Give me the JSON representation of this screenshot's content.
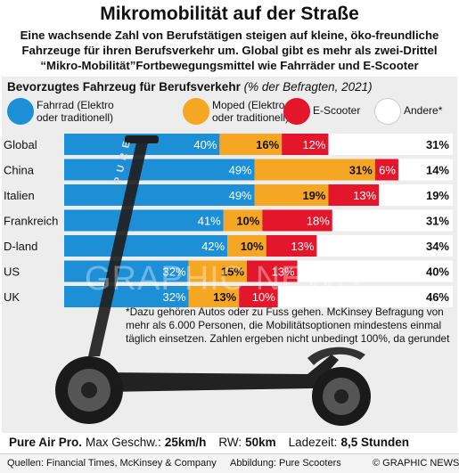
{
  "header": {
    "title": "Mikromobilität auf der Straße",
    "intro": "Eine wachsende Zahl von Berufstätigen steigen auf kleine, öko-freundliche Fahrzeuge für ihren Berufsverkehr um. Global gibt es mehr als zwei-Drittel “Mikro-Mobilität”Fortbewegungsmittel wie Fahrräder und E-Scooter"
  },
  "chart_data": {
    "type": "bar",
    "stacked": true,
    "horizontal": true,
    "title": "Bevorzugtes Fahrzeug für Berufsverkehr",
    "subtitle": "(% der Befragten, 2021)",
    "categories": [
      "Global",
      "China",
      "Italien",
      "Frankreich",
      "D-land",
      "US",
      "UK"
    ],
    "series": [
      {
        "name": "Fahrrad (Elektro oder traditionell)",
        "color": "#1c8fd6",
        "values": [
          40,
          49,
          49,
          41,
          42,
          32,
          32
        ]
      },
      {
        "name": "Moped (Elektro oder traditionell)",
        "color": "#f5a623",
        "values": [
          16,
          31,
          19,
          10,
          10,
          15,
          13
        ]
      },
      {
        "name": "E-Scooter",
        "color": "#e3162b",
        "values": [
          12,
          6,
          13,
          18,
          13,
          13,
          10
        ]
      },
      {
        "name": "Andere*",
        "color": "#ffffff",
        "values": [
          31,
          14,
          19,
          31,
          34,
          40,
          46
        ]
      }
    ],
    "value_suffix": "%",
    "legend": "top"
  },
  "footnote": "*Dazu gehören Autos oder zu Fuss gehen. McKinsey Befragung von mehr als 6.000 Personen, die Mobilitätsoptionen mindestens einmal täglich einsetzen. Zahlen ergeben nicht unbedingt 100%, da gerundet",
  "scooter": {
    "brand_text": "PURE"
  },
  "specs": {
    "model": "Pure Air Pro.",
    "speed_label": "Max Geschw.:",
    "speed_value": "25km/h",
    "range_label": "RW:",
    "range_value": "50km",
    "charge_label": "Ladezeit:",
    "charge_value": "8,5 Stunden"
  },
  "footer": {
    "sources": "Quellen: Financial Times, McKinsey & Company",
    "image_credit": "Abbildung: Pure Scooters",
    "copyright": "© GRAPHIC NEWS"
  },
  "watermark": "GRAPHIC NEWS"
}
